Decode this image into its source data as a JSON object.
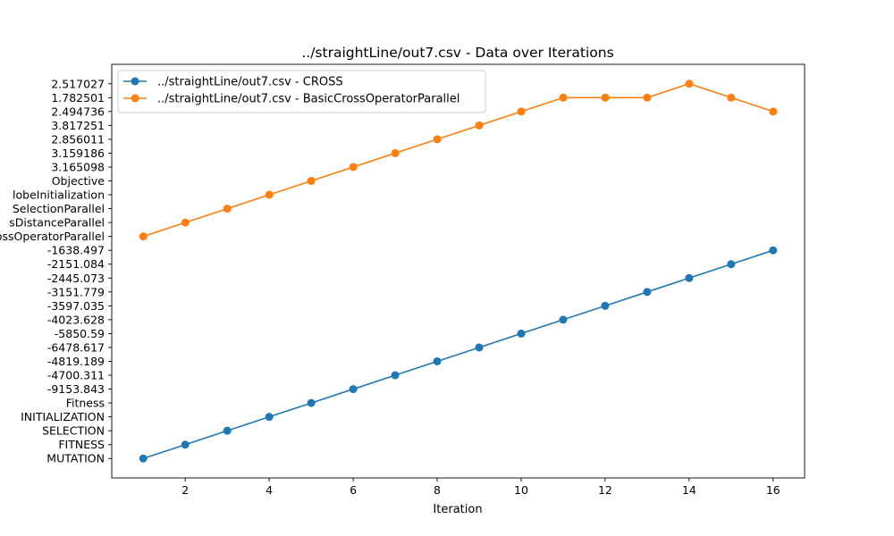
{
  "chart_data": {
    "type": "line",
    "title": "../straightLine/out7.csv - Data over Iterations",
    "xlabel": "Iteration",
    "ylabel": "",
    "x": [
      1,
      2,
      3,
      4,
      5,
      6,
      7,
      8,
      9,
      10,
      11,
      12,
      13,
      14,
      15,
      16
    ],
    "xticks": [
      2,
      4,
      6,
      8,
      10,
      12,
      14,
      16
    ],
    "xlim": [
      0.25,
      16.75
    ],
    "yticks": [
      "MUTATION",
      "FITNESS",
      "SELECTION",
      "INITIALIZATION",
      "Fitness",
      "-9153.843",
      "-4700.311",
      "-4819.189",
      "-6478.617",
      "-5850.59",
      "-4023.628",
      "-3597.035",
      "-3151.779",
      "-2445.073",
      "-2151.084",
      "-1638.497",
      "BasicCrossOperatorParallel",
      "sDistanceParallel",
      "SelectionParallel",
      "lobeInitialization",
      "Objective",
      "3.165098",
      "3.159186",
      "2.856011",
      "3.817251",
      "2.494736",
      "1.782501",
      "2.517027"
    ],
    "ylim": [
      -1.4,
      28.4
    ],
    "series": [
      {
        "name": "../straightLine/out7.csv - CROSS",
        "color": "#1f77b4",
        "values": [
          0,
          1,
          2,
          3,
          4,
          5,
          6,
          7,
          8,
          9,
          10,
          11,
          12,
          13,
          14,
          15
        ]
      },
      {
        "name": "../straightLine/out7.csv - BasicCrossOperatorParallel",
        "color": "#ff7f0e",
        "values": [
          16,
          17,
          18,
          19,
          20,
          21,
          22,
          23,
          24,
          25,
          26,
          26,
          26,
          27,
          26,
          25
        ]
      }
    ],
    "legend": "top-left",
    "grid": false
  }
}
